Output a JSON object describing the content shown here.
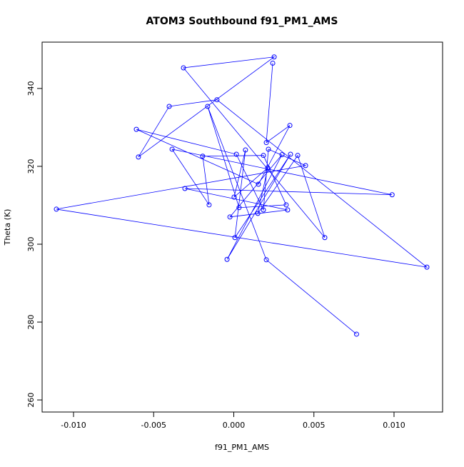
{
  "chart_data": {
    "type": "line",
    "title": "ATOM3 Southbound f91_PM1_AMS",
    "x_label": "f91_PM1_AMS",
    "y_label": "Theta (K)",
    "x": [
      0.00766,
      0.00203,
      -0.00163,
      0.00033,
      0.00327,
      0.00185,
      -0.00194,
      -0.00154,
      -0.00385,
      0.00988,
      -0.00305,
      0.00336,
      -0.00024,
      0.00301,
      -0.00042,
      0.00354,
      7e-05,
      0.00073,
      2e-05,
      0.00212,
      0.0015,
      0.00399,
      0.00568,
      -0.00314,
      0.00252,
      -0.00595,
      -0.00403,
      -0.00105,
      0.01205,
      -0.01107,
      0.00448,
      0.00216,
      0.00185,
      0.00016,
      -0.00608,
      0.00154,
      0.0035,
      0.00203,
      0.00243
    ],
    "series": [
      {
        "color": "#0000ff",
        "values": [
          276.9,
          296.0,
          335.4,
          309.4,
          310.1,
          322.8,
          322.6,
          310.1,
          324.4,
          312.7,
          314.3,
          308.8,
          307.0,
          323.0,
          296.1,
          323.1,
          301.7,
          324.2,
          312.1,
          319.6,
          307.9,
          322.8,
          301.7,
          345.3,
          348.1,
          322.4,
          335.4,
          337.1,
          294.1,
          309.0,
          320.2,
          324.4,
          308.8,
          323.1,
          329.5,
          315.4,
          330.5,
          326.1,
          346.5
        ]
      }
    ],
    "xlim": [
      -0.01196,
      0.01303
    ],
    "ylim": [
      256.9,
      351.9
    ],
    "xticks": [
      {
        "value": -0.01,
        "label": "-0.010"
      },
      {
        "value": -0.005,
        "label": "-0.005"
      },
      {
        "value": 0,
        "label": "0.000"
      },
      {
        "value": 0.005,
        "label": "0.005"
      },
      {
        "value": 0.01,
        "label": "0.010"
      }
    ],
    "yticks": [
      260,
      280,
      300,
      320,
      340
    ]
  }
}
